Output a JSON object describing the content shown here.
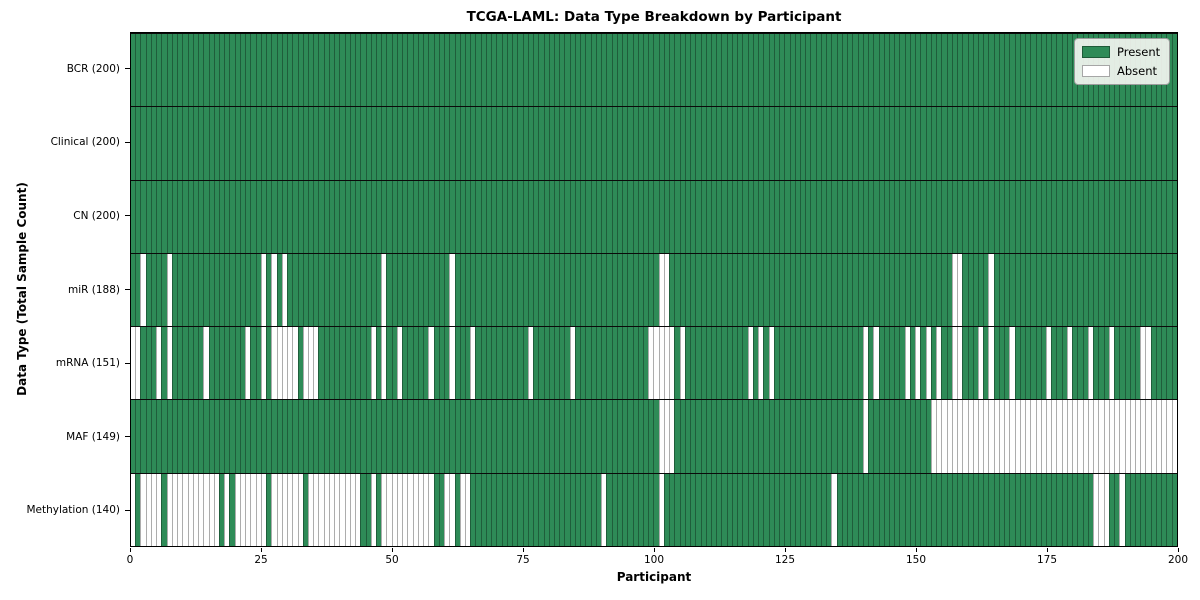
{
  "figure": {
    "title": "TCGA-LAML: Data Type Breakdown by Participant",
    "xlabel": "Participant",
    "ylabel": "Data Type (Total Sample Count)"
  },
  "chart_data": {
    "type": "heatmap",
    "title": "TCGA-LAML: Data Type Breakdown by Participant",
    "xlabel": "Participant",
    "ylabel": "Data Type (Total Sample Count)",
    "n_participants": 200,
    "x_range": [
      0,
      200
    ],
    "x_ticks": [
      0,
      25,
      50,
      75,
      100,
      125,
      150,
      175,
      200
    ],
    "grid": false,
    "legend_position": "upper right",
    "colors": {
      "present": "#2e8b57",
      "absent": "#ffffff"
    },
    "legend": [
      {
        "label": "Present",
        "color": "#2e8b57"
      },
      {
        "label": "Absent",
        "color": "#ffffff"
      }
    ],
    "rows": [
      {
        "label": "BCR (200)",
        "data_type": "BCR",
        "total_samples": 200,
        "absent": []
      },
      {
        "label": "Clinical (200)",
        "data_type": "Clinical",
        "total_samples": 200,
        "absent": []
      },
      {
        "label": "CN (200)",
        "data_type": "CN",
        "total_samples": 200,
        "absent": []
      },
      {
        "label": "miR (188)",
        "data_type": "miR",
        "total_samples": 188,
        "absent": [
          2,
          7,
          25,
          27,
          29,
          48,
          61,
          101,
          102,
          157,
          158,
          164
        ]
      },
      {
        "label": "mRNA (151)",
        "data_type": "mRNA",
        "total_samples": 151,
        "absent": [
          0,
          1,
          5,
          7,
          14,
          22,
          25,
          27,
          28,
          29,
          30,
          31,
          33,
          34,
          35,
          46,
          48,
          51,
          57,
          61,
          65,
          76,
          84,
          99,
          100,
          101,
          102,
          103,
          105,
          118,
          120,
          122,
          140,
          142,
          148,
          150,
          152,
          154,
          157,
          158,
          162,
          164,
          168,
          175,
          179,
          183,
          187,
          193,
          194
        ]
      },
      {
        "label": "MAF (149)",
        "data_type": "MAF",
        "total_samples": 149,
        "absent": [
          101,
          102,
          103,
          140,
          153,
          154,
          155,
          156,
          157,
          158,
          159,
          160,
          161,
          162,
          163,
          164,
          165,
          166,
          167,
          168,
          169,
          170,
          171,
          172,
          173,
          174,
          175,
          176,
          177,
          178,
          179,
          180,
          181,
          182,
          183,
          184,
          185,
          186,
          187,
          188,
          189,
          190,
          191,
          192,
          193,
          194,
          195,
          196,
          197,
          198,
          199
        ]
      },
      {
        "label": "Methylation (140)",
        "data_type": "Methylation",
        "total_samples": 140,
        "absent": [
          0,
          2,
          3,
          4,
          5,
          7,
          8,
          9,
          10,
          11,
          12,
          13,
          14,
          15,
          16,
          18,
          20,
          21,
          22,
          23,
          24,
          25,
          27,
          28,
          29,
          30,
          31,
          32,
          34,
          35,
          36,
          37,
          38,
          39,
          40,
          41,
          42,
          43,
          46,
          48,
          49,
          50,
          51,
          52,
          53,
          54,
          55,
          56,
          57,
          60,
          61,
          63,
          64,
          90,
          101,
          134,
          184,
          185,
          186,
          189
        ]
      }
    ]
  }
}
